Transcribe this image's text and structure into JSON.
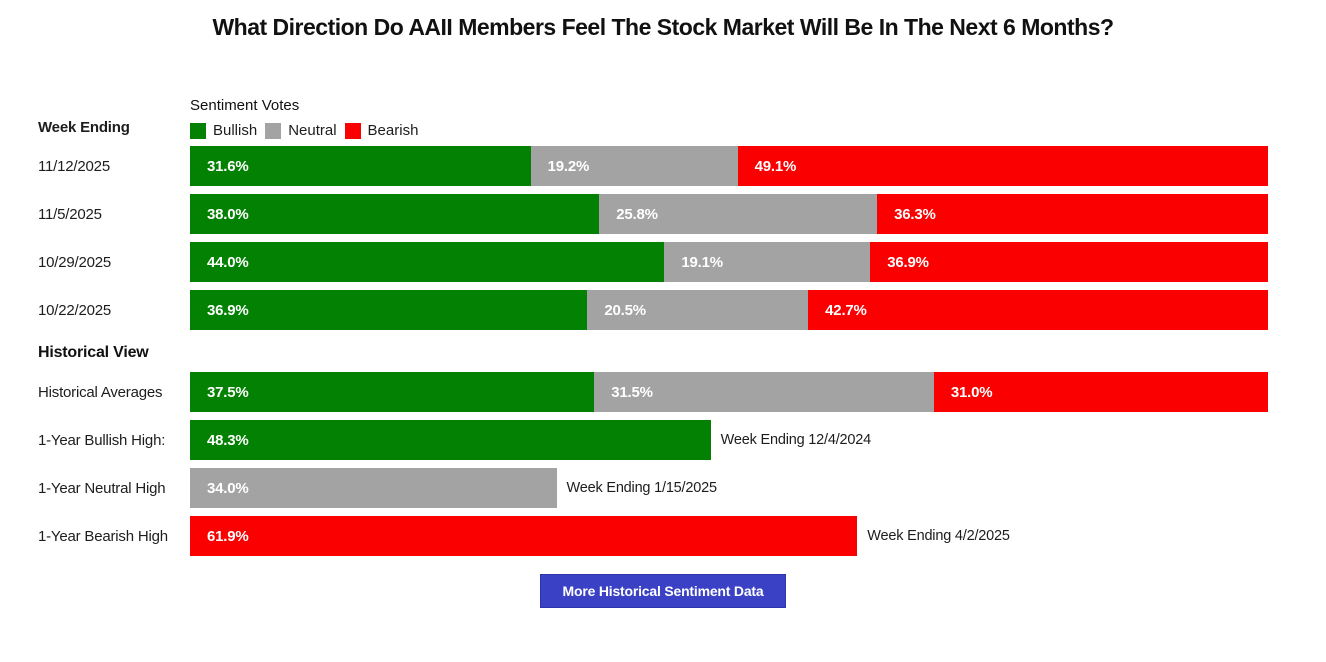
{
  "title": "What Direction Do AAII Members Feel The Stock Market Will Be In The Next 6 Months?",
  "colors": {
    "bullish": "#038103",
    "neutral": "#a3a3a3",
    "bearish": "#fa0000",
    "button": "#3a41c4"
  },
  "header": {
    "week_ending": "Week Ending",
    "sentiment_votes": "Sentiment Votes"
  },
  "legend": [
    {
      "label": "Bullish"
    },
    {
      "label": "Neutral"
    },
    {
      "label": "Bearish"
    }
  ],
  "weekly_rows": [
    {
      "label": "11/12/2025",
      "bullish": "31.6%",
      "neutral": "19.2%",
      "bearish": "49.1%"
    },
    {
      "label": "11/5/2025",
      "bullish": "38.0%",
      "neutral": "25.8%",
      "bearish": "36.3%"
    },
    {
      "label": "10/29/2025",
      "bullish": "44.0%",
      "neutral": "19.1%",
      "bearish": "36.9%"
    },
    {
      "label": "10/22/2025",
      "bullish": "36.9%",
      "neutral": "20.5%",
      "bearish": "42.7%"
    }
  ],
  "historical": {
    "heading": "Historical View",
    "averages": {
      "label": "Historical Averages",
      "bullish": "37.5%",
      "neutral": "31.5%",
      "bearish": "31.0%"
    },
    "highs": [
      {
        "label": "1-Year Bullish High:",
        "value": "48.3%",
        "annotation": "Week Ending 12/4/2024"
      },
      {
        "label": "1-Year Neutral High",
        "value": "34.0%",
        "annotation": "Week Ending 1/15/2025"
      },
      {
        "label": "1-Year Bearish High",
        "value": "61.9%",
        "annotation": "Week Ending 4/2/2025"
      }
    ]
  },
  "button": {
    "label": "More Historical Sentiment Data"
  },
  "chart_data": {
    "type": "bar",
    "orientation": "horizontal",
    "stacked": true,
    "unit": "%",
    "xlim": [
      0,
      100
    ],
    "title": "What Direction Do AAII Members Feel The Stock Market Will Be In The Next 6 Months?",
    "categories": [
      "11/12/2025",
      "11/5/2025",
      "10/29/2025",
      "10/22/2025"
    ],
    "series": [
      {
        "name": "Bullish",
        "color": "#038103",
        "values": [
          31.6,
          38.0,
          44.0,
          36.9
        ]
      },
      {
        "name": "Neutral",
        "color": "#a3a3a3",
        "values": [
          19.2,
          25.8,
          19.1,
          20.5
        ]
      },
      {
        "name": "Bearish",
        "color": "#fa0000",
        "values": [
          49.1,
          36.3,
          36.9,
          42.7
        ]
      }
    ],
    "historical_averages": {
      "bullish": 37.5,
      "neutral": 31.5,
      "bearish": 31.0
    },
    "one_year_highs": [
      {
        "name": "Bullish",
        "value": 48.3,
        "week_ending": "12/4/2024"
      },
      {
        "name": "Neutral",
        "value": 34.0,
        "week_ending": "1/15/2025"
      },
      {
        "name": "Bearish",
        "value": 61.9,
        "week_ending": "4/2/2025"
      }
    ],
    "legend_position": "top"
  }
}
